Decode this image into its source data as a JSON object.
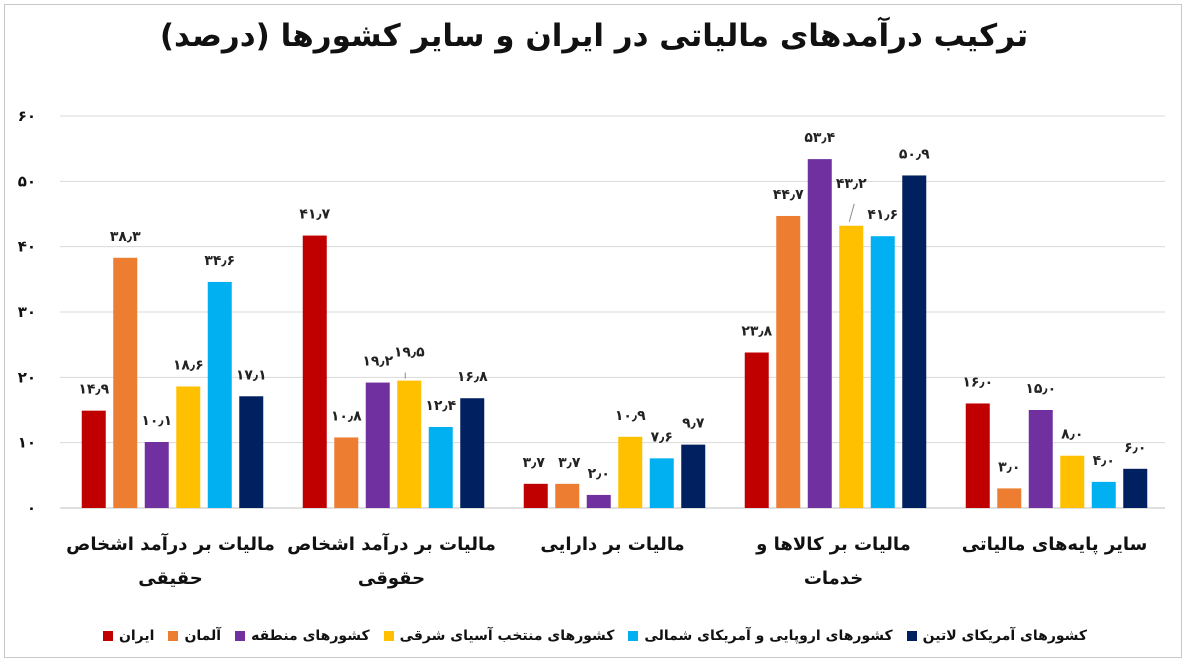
{
  "chart_data": {
    "type": "bar",
    "title": "ترکیب درآمدهای مالیاتی در ایران و سایر کشورها (درصد)",
    "categories": [
      [
        "مالیات بر درآمد اشخاص",
        "حقیقی"
      ],
      [
        "مالیات بر درآمد اشخاص",
        "حقوقی"
      ],
      [
        "مالیات بر دارایی"
      ],
      [
        "مالیات بر کالاها و خدمات"
      ],
      [
        "سایر پایه‌های مالیاتی"
      ]
    ],
    "ylim": [
      0,
      60
    ],
    "yticks": [
      0,
      10,
      20,
      30,
      40,
      50,
      60
    ],
    "ytick_labels": [
      "۰",
      "۱۰",
      "۲۰",
      "۳۰",
      "۴۰",
      "۵۰",
      "۶۰"
    ],
    "grid": true,
    "legend_position": "bottom",
    "series": [
      {
        "name": "ایران",
        "color": "#C00000",
        "values": [
          14.9,
          41.7,
          3.7,
          23.8,
          16.0
        ],
        "labels": [
          "۱۴٫۹",
          "۴۱٫۷",
          "۳٫۷",
          "۲۳٫۸",
          "۱۶٫۰"
        ]
      },
      {
        "name": "آلمان",
        "color": "#ED7D31",
        "values": [
          38.3,
          10.8,
          3.7,
          44.7,
          3.0
        ],
        "labels": [
          "۳۸٫۳",
          "۱۰٫۸",
          "۳٫۷",
          "۴۴٫۷",
          "۳٫۰"
        ]
      },
      {
        "name": "کشورهای منطقه",
        "color": "#7030A0",
        "values": [
          10.1,
          19.2,
          2.0,
          53.4,
          15.0
        ],
        "labels": [
          "۱۰٫۱",
          "۱۹٫۲",
          "۲٫۰",
          "۵۳٫۴",
          "۱۵٫۰"
        ]
      },
      {
        "name": "کشورهای منتخب آسیای شرقی",
        "color": "#FFC000",
        "values": [
          18.6,
          19.5,
          10.9,
          43.2,
          8.0
        ],
        "labels": [
          "۱۸٫۶",
          "۱۹٫۵",
          "۱۰٫۹",
          "۴۳٫۲",
          "۸٫۰"
        ]
      },
      {
        "name": "کشورهای اروپایی و آمریکای شمالی",
        "color": "#00B0F0",
        "values": [
          34.6,
          12.4,
          7.6,
          41.6,
          4.0
        ],
        "labels": [
          "۳۴٫۶",
          "۱۲٫۴",
          "۷٫۶",
          "۴۱٫۶",
          "۴٫۰"
        ]
      },
      {
        "name": "کشورهای آمریکای لاتین",
        "color": "#002060",
        "values": [
          17.1,
          16.8,
          9.7,
          50.9,
          6.0
        ],
        "labels": [
          "۱۷٫۱",
          "۱۶٫۸",
          "۹٫۷",
          "۵۰٫۹",
          "۶٫۰"
        ]
      }
    ]
  }
}
